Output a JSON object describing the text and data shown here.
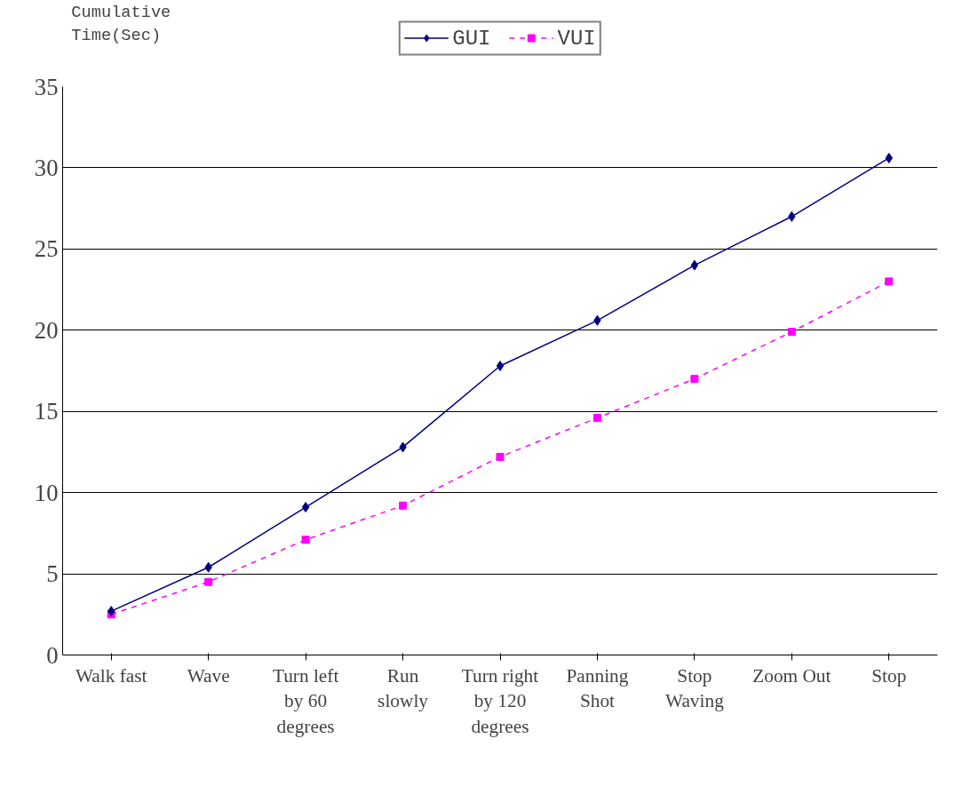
{
  "chart_data": {
    "type": "line",
    "ylabel": "Cumulative\nTime(Sec)",
    "categories": [
      "Walk fast",
      "Wave",
      "Turn left\nby 60\ndegrees",
      "Run\nslowly",
      "Turn right\nby 120\ndegrees",
      "Panning\nShot",
      "Stop\nWaving",
      "Zoom Out",
      "Stop"
    ],
    "series": [
      {
        "name": "GUI",
        "color": "#000080",
        "marker": "diamond",
        "line_style": "solid",
        "values": [
          2.7,
          5.4,
          9.1,
          12.8,
          17.8,
          20.6,
          24.0,
          27.0,
          30.6
        ]
      },
      {
        "name": "VUI",
        "color": "#ff00ff",
        "marker": "square",
        "line_style": "dashed",
        "values": [
          2.5,
          4.5,
          7.1,
          9.2,
          12.2,
          14.6,
          17.0,
          19.9,
          23.0
        ]
      }
    ],
    "ylim": [
      0,
      35
    ],
    "yticks": [
      0,
      5,
      10,
      15,
      20,
      25,
      30,
      35
    ],
    "grid": "y",
    "legend": "top"
  }
}
